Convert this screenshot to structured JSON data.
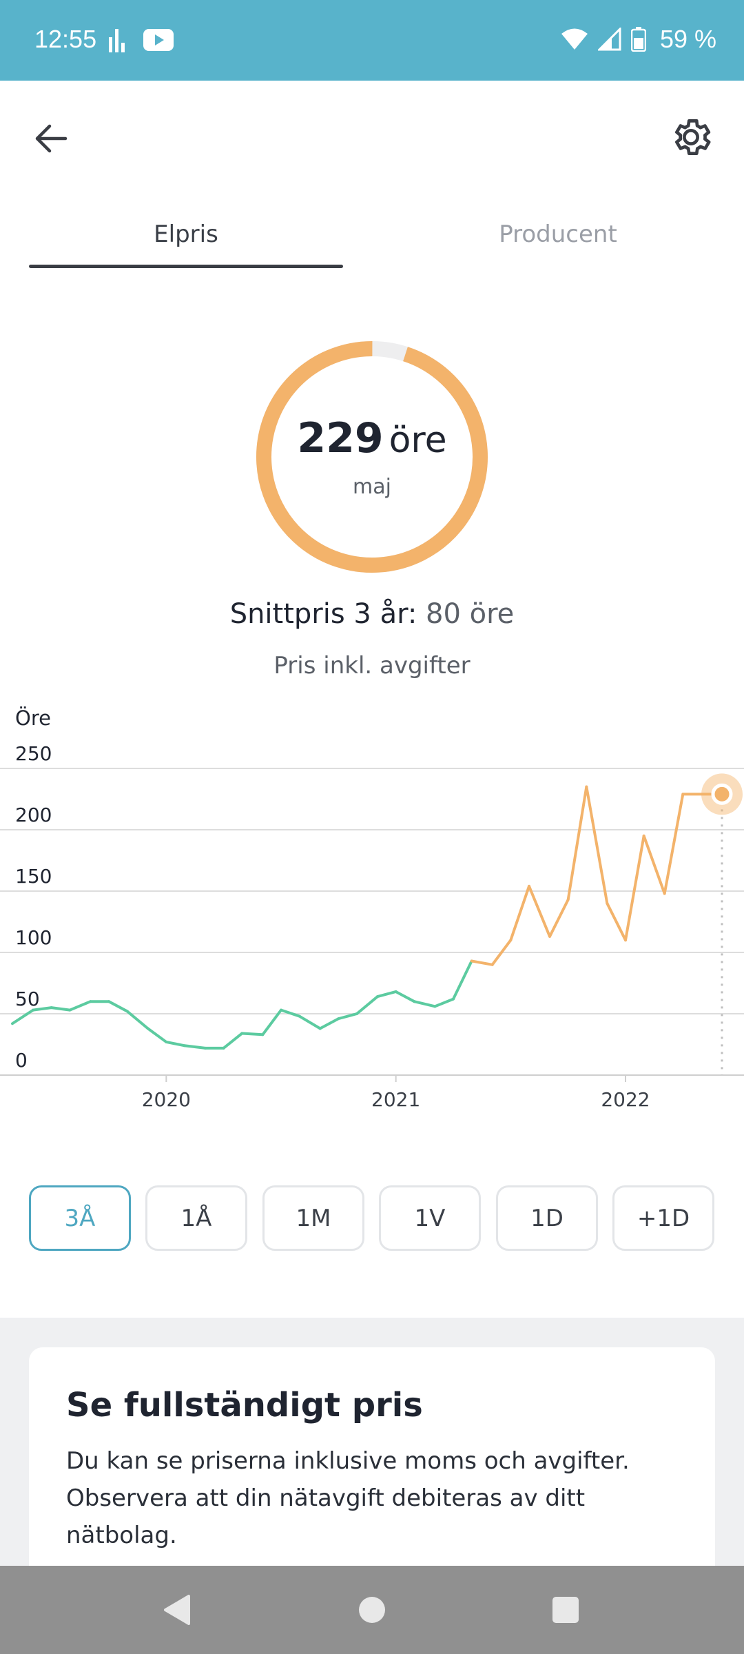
{
  "status_bar": {
    "time": "12:55",
    "battery_text": "59 %",
    "icons": [
      "bar-chart-icon",
      "youtube-icon",
      "wifi-icon",
      "signal-icon",
      "battery-icon"
    ]
  },
  "app_bar": {
    "icons": [
      "arrow-left-icon",
      "gear-icon"
    ]
  },
  "tabs": [
    {
      "label": "Elpris",
      "active": true
    },
    {
      "label": "Producent",
      "active": false
    }
  ],
  "gauge": {
    "value": "229",
    "unit": "öre",
    "month": "maj",
    "fill_fraction": 0.95,
    "color": "#f3b36b",
    "track_color": "#eeeeef"
  },
  "summary": {
    "avg_label": "Snittpris 3 år:",
    "avg_value": "80 öre",
    "subtitle": "Pris inkl. avgifter"
  },
  "chart_data": {
    "type": "line",
    "ylabel": "Öre",
    "ylim": [
      0,
      250
    ],
    "y_ticks": [
      "0",
      "50",
      "100",
      "150",
      "200",
      "250"
    ],
    "x_tick_labels": [
      "2020",
      "2021",
      "2022"
    ],
    "x_tick_positions": [
      2020.0,
      2021.0,
      2022.0
    ],
    "xlim": [
      2019.33,
      2022.42
    ],
    "grid": true,
    "colors": {
      "low": "#5ccba0",
      "high": "#f3b36b",
      "grid": "#dddddd",
      "axis": "#cfcfcf"
    },
    "series": [
      {
        "x": [
          2019.33,
          2019.42,
          2019.5,
          2019.58,
          2019.67,
          2019.75,
          2019.83,
          2019.92,
          2020.0,
          2020.08,
          2020.17,
          2020.25,
          2020.33,
          2020.42,
          2020.5,
          2020.58,
          2020.67,
          2020.75,
          2020.83,
          2020.92,
          2021.0,
          2021.08,
          2021.17,
          2021.25,
          2021.33,
          2021.42,
          2021.5,
          2021.58,
          2021.67,
          2021.75,
          2021.83,
          2021.92,
          2022.0,
          2022.08,
          2022.17,
          2022.25,
          2022.33,
          2022.42
        ],
        "y": [
          42,
          53,
          55,
          53,
          60,
          60,
          52,
          38,
          27,
          24,
          22,
          22,
          34,
          33,
          53,
          48,
          38,
          46,
          50,
          64,
          68,
          60,
          56,
          62,
          93,
          90,
          110,
          154,
          113,
          143,
          235,
          140,
          110,
          195,
          148,
          229,
          229,
          229
        ]
      }
    ],
    "highlight_point": {
      "x": 2022.42,
      "y": 229
    }
  },
  "periods": [
    {
      "label": "3Å",
      "active": true
    },
    {
      "label": "1Å",
      "active": false
    },
    {
      "label": "1M",
      "active": false
    },
    {
      "label": "1V",
      "active": false
    },
    {
      "label": "1D",
      "active": false
    },
    {
      "label": "+1D",
      "active": false
    }
  ],
  "card": {
    "title": "Se fullständigt pris",
    "text": "Du kan se priserna inklusive moms och avgifter. Observera att din nätavgift debiteras av ditt nätbolag."
  },
  "nav_bar": {
    "icons": [
      "back-triangle-icon",
      "home-circle-icon",
      "recents-square-icon"
    ]
  }
}
